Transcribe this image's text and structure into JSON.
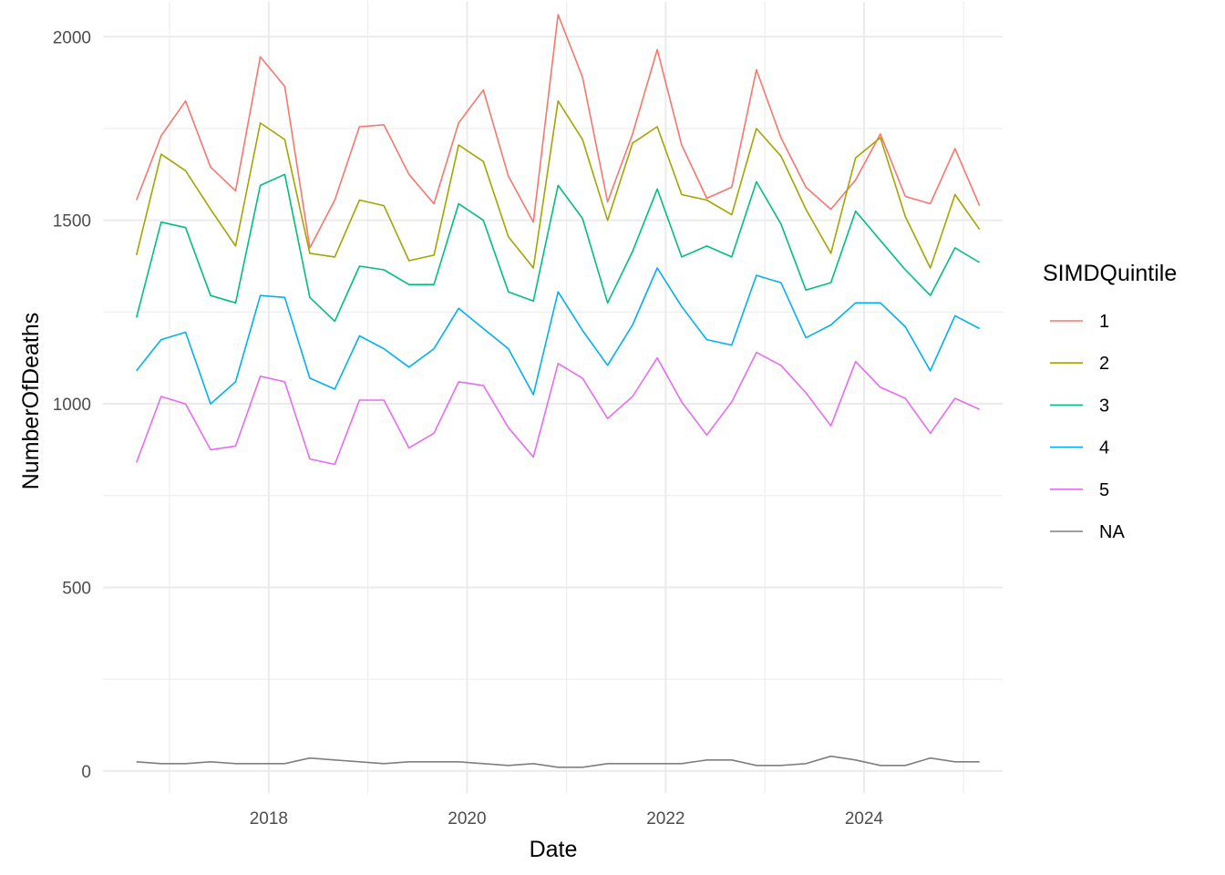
{
  "chart_data": {
    "type": "line",
    "title": "",
    "xlabel": "Date",
    "ylabel": "NumberOfDeaths",
    "xlim": [
      "2016-05-01",
      "2025-05-25"
    ],
    "ylim": [
      -60,
      2100
    ],
    "x_tick_labels": [
      "2018",
      "2020",
      "2022",
      "2024"
    ],
    "y_tick_labels": [
      "0",
      "500",
      "1000",
      "1500",
      "2000"
    ],
    "grid": true,
    "legend": {
      "title": "SIMDQuintile",
      "position": "right"
    },
    "x": [
      "2016-09-01",
      "2016-12-01",
      "2017-03-01",
      "2017-06-01",
      "2017-09-01",
      "2017-12-01",
      "2018-03-01",
      "2018-06-01",
      "2018-09-01",
      "2018-12-01",
      "2019-03-01",
      "2019-06-01",
      "2019-09-01",
      "2019-12-01",
      "2020-03-01",
      "2020-06-01",
      "2020-09-01",
      "2020-12-01",
      "2021-03-01",
      "2021-06-01",
      "2021-09-01",
      "2021-12-01",
      "2022-03-01",
      "2022-06-01",
      "2022-09-01",
      "2022-12-01",
      "2023-03-01",
      "2023-06-01",
      "2023-09-01",
      "2023-12-01",
      "2024-03-01",
      "2024-06-01",
      "2024-09-01",
      "2024-12-01",
      "2025-03-01"
    ],
    "series": [
      {
        "name": "1",
        "color": "#F8766D",
        "values": [
          1555,
          1730,
          1825,
          1645,
          1580,
          1945,
          1865,
          1425,
          1555,
          1755,
          1760,
          1625,
          1545,
          1765,
          1855,
          1620,
          1495,
          2060,
          1890,
          1550,
          1735,
          1965,
          1705,
          1560,
          1590,
          1910,
          1725,
          1590,
          1530,
          1610,
          1735,
          1565,
          1545,
          1695,
          1540
        ]
      },
      {
        "name": "2",
        "color": "#A3A500",
        "values": [
          1405,
          1680,
          1635,
          1530,
          1430,
          1765,
          1720,
          1410,
          1400,
          1555,
          1540,
          1390,
          1405,
          1705,
          1660,
          1455,
          1370,
          1825,
          1720,
          1500,
          1710,
          1755,
          1570,
          1555,
          1515,
          1750,
          1675,
          1530,
          1410,
          1670,
          1725,
          1510,
          1370,
          1570,
          1475
        ]
      },
      {
        "name": "3",
        "color": "#00BF7D",
        "values": [
          1235,
          1495,
          1480,
          1295,
          1275,
          1595,
          1625,
          1290,
          1225,
          1375,
          1365,
          1325,
          1325,
          1545,
          1500,
          1305,
          1280,
          1595,
          1505,
          1275,
          1415,
          1585,
          1400,
          1430,
          1400,
          1605,
          1490,
          1310,
          1330,
          1525,
          1445,
          1365,
          1295,
          1425,
          1385
        ]
      },
      {
        "name": "4",
        "color": "#00B0F6",
        "values": [
          1090,
          1175,
          1195,
          1000,
          1060,
          1295,
          1290,
          1070,
          1040,
          1185,
          1150,
          1100,
          1150,
          1260,
          1205,
          1150,
          1025,
          1305,
          1200,
          1105,
          1215,
          1370,
          1265,
          1175,
          1160,
          1350,
          1330,
          1180,
          1215,
          1275,
          1275,
          1210,
          1090,
          1240,
          1205
        ]
      },
      {
        "name": "5",
        "color": "#E76BF3",
        "values": [
          840,
          1020,
          1000,
          875,
          885,
          1075,
          1060,
          850,
          835,
          1010,
          1010,
          880,
          920,
          1060,
          1050,
          935,
          855,
          1110,
          1070,
          960,
          1020,
          1125,
          1005,
          915,
          1005,
          1140,
          1105,
          1030,
          940,
          1115,
          1045,
          1015,
          920,
          1015,
          985
        ]
      },
      {
        "name": "NA",
        "color": "#7F7F7F",
        "values": [
          25,
          20,
          20,
          25,
          20,
          20,
          20,
          35,
          30,
          25,
          20,
          25,
          25,
          25,
          20,
          15,
          20,
          10,
          10,
          20,
          20,
          20,
          20,
          30,
          30,
          15,
          15,
          20,
          40,
          30,
          15,
          15,
          35,
          25,
          25
        ]
      }
    ]
  }
}
